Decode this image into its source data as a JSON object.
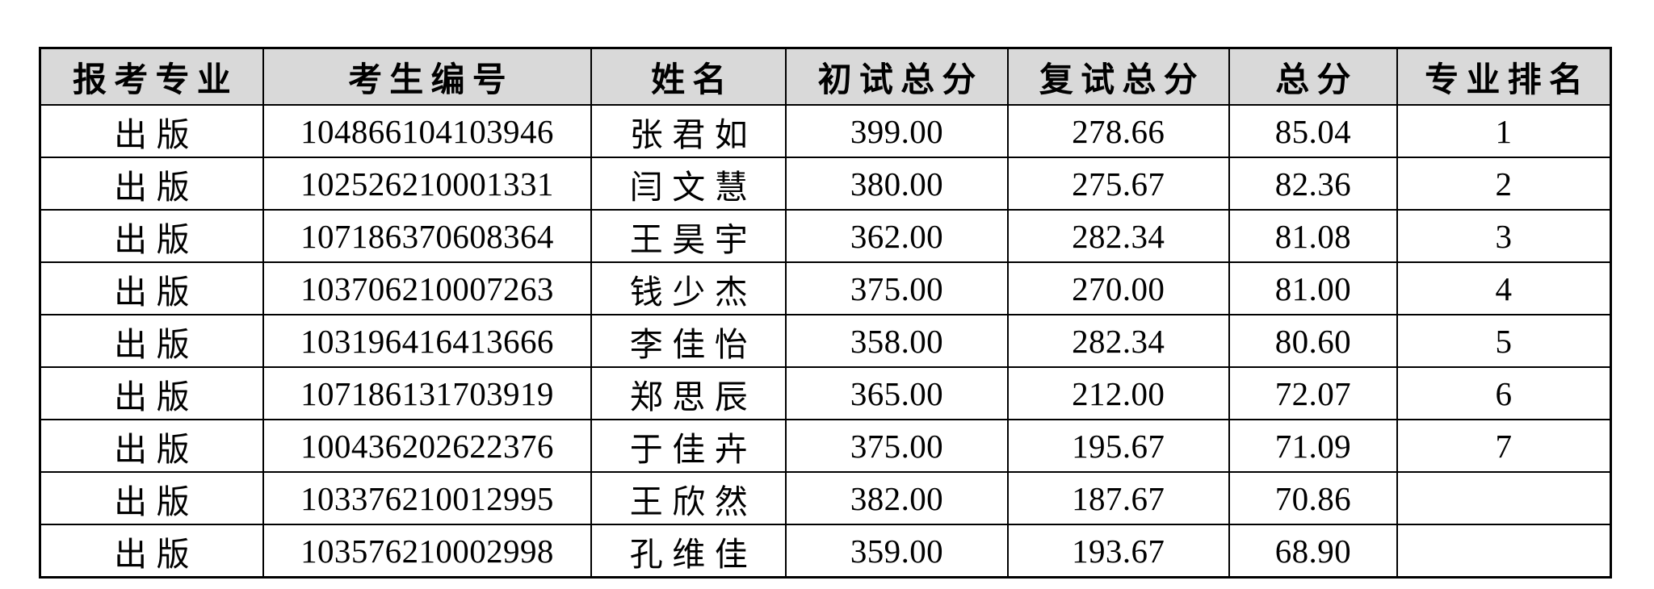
{
  "colors": {
    "page_bg": "#ffffff",
    "header_bg": "#d9d9d9",
    "border": "#000000",
    "text": "#000000"
  },
  "table": {
    "columns": [
      {
        "key": "major",
        "label": "报考专业",
        "cjk": true
      },
      {
        "key": "candidate_id",
        "label": "考生编号",
        "cjk": false
      },
      {
        "key": "name",
        "label": "姓名",
        "cjk": true
      },
      {
        "key": "initial_score",
        "label": "初试总分",
        "cjk": false
      },
      {
        "key": "retest_score",
        "label": "复试总分",
        "cjk": false
      },
      {
        "key": "total_score",
        "label": "总分",
        "cjk": false
      },
      {
        "key": "rank",
        "label": "专业排名",
        "cjk": false
      }
    ],
    "rows": [
      {
        "major": "出版",
        "candidate_id": "104866104103946",
        "name": "张君如",
        "initial_score": "399.00",
        "retest_score": "278.66",
        "total_score": "85.04",
        "rank": "1"
      },
      {
        "major": "出版",
        "candidate_id": "102526210001331",
        "name": "闫文慧",
        "initial_score": "380.00",
        "retest_score": "275.67",
        "total_score": "82.36",
        "rank": "2"
      },
      {
        "major": "出版",
        "candidate_id": "107186370608364",
        "name": "王昊宇",
        "initial_score": "362.00",
        "retest_score": "282.34",
        "total_score": "81.08",
        "rank": "3"
      },
      {
        "major": "出版",
        "candidate_id": "103706210007263",
        "name": "钱少杰",
        "initial_score": "375.00",
        "retest_score": "270.00",
        "total_score": "81.00",
        "rank": "4"
      },
      {
        "major": "出版",
        "candidate_id": "103196416413666",
        "name": "李佳怡",
        "initial_score": "358.00",
        "retest_score": "282.34",
        "total_score": "80.60",
        "rank": "5"
      },
      {
        "major": "出版",
        "candidate_id": "107186131703919",
        "name": "郑思辰",
        "initial_score": "365.00",
        "retest_score": "212.00",
        "total_score": "72.07",
        "rank": "6"
      },
      {
        "major": "出版",
        "candidate_id": "100436202622376",
        "name": "于佳卉",
        "initial_score": "375.00",
        "retest_score": "195.67",
        "total_score": "71.09",
        "rank": "7"
      },
      {
        "major": "出版",
        "candidate_id": "103376210012995",
        "name": "王欣然",
        "initial_score": "382.00",
        "retest_score": "187.67",
        "total_score": "70.86",
        "rank": ""
      },
      {
        "major": "出版",
        "candidate_id": "103576210002998",
        "name": "孔维佳",
        "initial_score": "359.00",
        "retest_score": "193.67",
        "total_score": "68.90",
        "rank": ""
      }
    ]
  }
}
